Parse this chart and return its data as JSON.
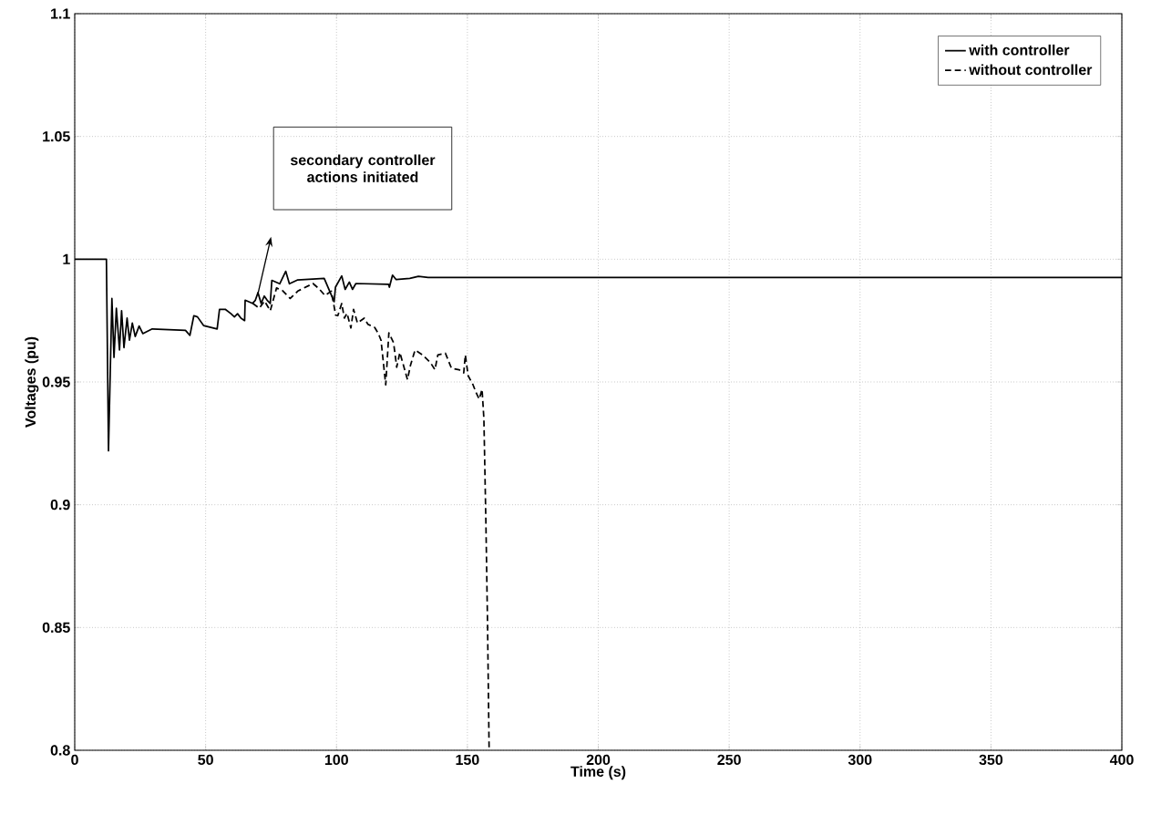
{
  "chart_data": {
    "type": "line",
    "xlabel": "Time (s)",
    "ylabel": "Voltages (pu)",
    "xlim": [
      0,
      400
    ],
    "ylim": [
      0.8,
      1.1
    ],
    "xticks": [
      0,
      50,
      100,
      150,
      200,
      250,
      300,
      350,
      400
    ],
    "yticks": [
      0.8,
      0.85,
      0.9,
      0.95,
      1,
      1.05,
      1.1
    ],
    "grid": true,
    "legend": "top right",
    "marker": "none",
    "annotations": [
      "secondary controller actions initiated"
    ],
    "series": [
      {
        "name": "with controller",
        "color": "#000000",
        "line_style": "solid",
        "x": [
          0,
          12.1,
          12.9,
          14.2,
          15.0,
          15.9,
          17.1,
          17.9,
          18.8,
          20.0,
          20.9,
          22.0,
          23.1,
          24.6,
          26.0,
          29.6,
          42.3,
          44.0,
          45.5,
          46.9,
          49.2,
          54.4,
          55.3,
          57.5,
          59.7,
          61.0,
          62.2,
          63.5,
          64.9,
          65.1,
          67.9,
          69.0,
          70.0,
          71.2,
          72.4,
          73.5,
          74.7,
          75.3,
          78.3,
          80.6,
          82.0,
          85.0,
          95.3,
          99.1,
          99.6,
          102.0,
          103.3,
          104.9,
          106.1,
          107.4,
          119.9,
          120.2,
          121.4,
          122.8,
          128.0,
          131.3,
          135.0,
          400
        ],
        "values": [
          1.0,
          1.0,
          0.922,
          0.984,
          0.96,
          0.98,
          0.963,
          0.979,
          0.964,
          0.976,
          0.967,
          0.974,
          0.9685,
          0.9728,
          0.9697,
          0.9716,
          0.971,
          0.969,
          0.977,
          0.9765,
          0.973,
          0.9716,
          0.9796,
          0.9796,
          0.9778,
          0.9765,
          0.9778,
          0.976,
          0.975,
          0.9833,
          0.982,
          0.9833,
          0.9864,
          0.982,
          0.985,
          0.9833,
          0.982,
          0.9914,
          0.99,
          0.9951,
          0.99,
          0.9915,
          0.9922,
          0.9827,
          0.9886,
          0.9932,
          0.9877,
          0.9907,
          0.9877,
          0.9901,
          0.9898,
          0.9886,
          0.9935,
          0.9917,
          0.9922,
          0.993,
          0.9926,
          0.9926
        ]
      },
      {
        "name": "without controller",
        "color": "#000000",
        "line_style": "dashed",
        "x": [
          68.0,
          70.5,
          72.5,
          74.7,
          77.1,
          79.4,
          82.3,
          85.2,
          91.0,
          93.3,
          95.6,
          98.0,
          99.7,
          100.5,
          102.0,
          103.0,
          104.0,
          105.5,
          106.5,
          108.0,
          110.6,
          112.0,
          114.6,
          116.0,
          117.0,
          118.8,
          120.0,
          121.8,
          123.0,
          124.2,
          127.1,
          128.3,
          130.0,
          132.9,
          135.8,
          137.6,
          138.7,
          141.6,
          143.9,
          146.8,
          148.6,
          149.2,
          150.3,
          152.1,
          153.3,
          154.5,
          155.6,
          156.3,
          157.1,
          157.7,
          158.3
        ],
        "values": [
          0.982,
          0.98,
          0.983,
          0.979,
          0.9883,
          0.9872,
          0.984,
          0.987,
          0.9901,
          0.988,
          0.9852,
          0.987,
          0.9772,
          0.977,
          0.982,
          0.976,
          0.978,
          0.972,
          0.9796,
          0.974,
          0.976,
          0.9735,
          0.9722,
          0.9697,
          0.967,
          0.9488,
          0.97,
          0.966,
          0.956,
          0.962,
          0.951,
          0.957,
          0.963,
          0.961,
          0.958,
          0.955,
          0.961,
          0.9617,
          0.9556,
          0.955,
          0.9537,
          0.961,
          0.9525,
          0.949,
          0.9457,
          0.943,
          0.947,
          0.935,
          0.8907,
          0.851,
          0.8
        ]
      }
    ]
  }
}
